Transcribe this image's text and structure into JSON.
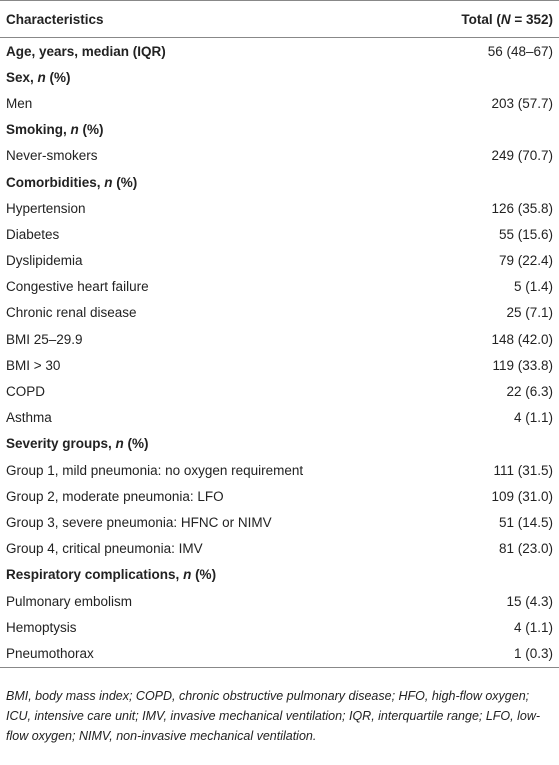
{
  "table": {
    "header": [
      "Characteristics",
      "Total (N = 352)"
    ],
    "rows": [
      {
        "label": "Age, years, median (IQR)",
        "value": "56 (48–67)",
        "heading": true
      },
      {
        "label": "Sex, n (%)",
        "heading": true
      },
      {
        "label": "Men",
        "value": "203 (57.7)"
      },
      {
        "label": "Smoking, n (%)",
        "heading": true
      },
      {
        "label": "Never-smokers",
        "value": "249 (70.7)"
      },
      {
        "label": "Comorbidities, n (%)",
        "heading": true
      },
      {
        "label": "Hypertension",
        "value": "126 (35.8)"
      },
      {
        "label": "Diabetes",
        "value": "55 (15.6)"
      },
      {
        "label": "Dyslipidemia",
        "value": "79 (22.4)"
      },
      {
        "label": "Congestive heart failure",
        "value": "5 (1.4)"
      },
      {
        "label": "Chronic renal disease",
        "value": "25 (7.1)"
      },
      {
        "label": "BMI 25–29.9",
        "value": "148 (42.0)"
      },
      {
        "label": "BMI > 30",
        "value": "119 (33.8)"
      },
      {
        "label": "COPD",
        "value": "22 (6.3)"
      },
      {
        "label": "Asthma",
        "value": "4 (1.1)"
      },
      {
        "label": "Severity groups, n (%)",
        "heading": true
      },
      {
        "label": "Group 1, mild pneumonia: no oxygen requirement",
        "value": "111 (31.5)"
      },
      {
        "label": "Group 2, moderate pneumonia: LFO",
        "value": "109 (31.0)"
      },
      {
        "label": "Group 3, severe pneumonia: HFNC or NIMV",
        "value": "51 (14.5)"
      },
      {
        "label": "Group 4, critical pneumonia: IMV",
        "value": "81 (23.0)"
      },
      {
        "label": "Respiratory complications, n (%)",
        "heading": true
      },
      {
        "label": "Pulmonary embolism",
        "value": "15 (4.3)"
      },
      {
        "label": "Hemoptysis",
        "value": "4 (1.1)"
      },
      {
        "label": "Pneumothorax",
        "value": "1 (0.3)"
      }
    ],
    "footnote": "BMI, body mass index; COPD, chronic obstructive pulmonary disease; HFO, high-flow oxygen; ICU, intensive care unit; IMV, invasive mechanical ventilation; IQR, interquartile range; LFO, low-flow oxygen; NIMV, non-invasive mechanical ventilation."
  }
}
